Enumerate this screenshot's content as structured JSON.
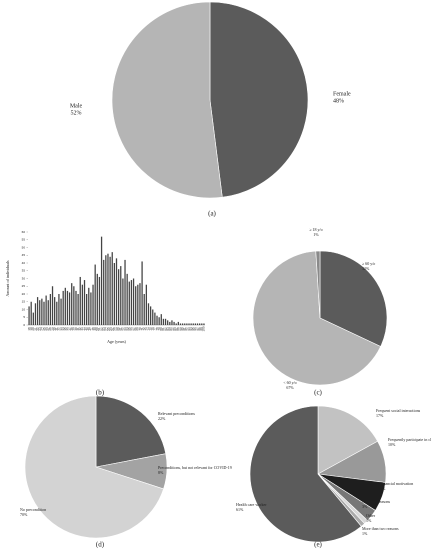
{
  "chart_data": [
    {
      "type": "pie",
      "panel": "(a)",
      "categories": [
        "Female",
        "Male"
      ],
      "values": [
        48,
        52
      ],
      "value_labels": [
        "48%",
        "52%"
      ],
      "colors": [
        "#5b5b5b",
        "#b5b5b5"
      ]
    },
    {
      "type": "bar",
      "panel": "(b)",
      "y_label": "Amount of individuals",
      "x_label": "Age (years)",
      "categories": [
        "18",
        "19",
        "20",
        "21",
        "22",
        "23",
        "24",
        "25",
        "26",
        "27",
        "28",
        "29",
        "30",
        "31",
        "32",
        "33",
        "34",
        "35",
        "36",
        "37",
        "38",
        "39",
        "40",
        "41",
        "42",
        "43",
        "44",
        "45",
        "46",
        "47",
        "48",
        "49",
        "50",
        "51",
        "52",
        "53",
        "54",
        "55",
        "56",
        "57",
        "58",
        "59",
        "60",
        "61",
        "62",
        "63",
        "64",
        "65",
        "66",
        "67",
        "68",
        "69",
        "70",
        "71",
        "72",
        "73",
        "74",
        "75",
        "76",
        "77",
        "78",
        "79",
        "80",
        "81",
        "82",
        "83",
        "84",
        "85",
        "86",
        "87",
        "88",
        "89",
        "90",
        "91",
        "92",
        "93",
        "94",
        "95",
        "96",
        "97",
        "98",
        "99",
        "100"
      ],
      "values": [
        12,
        15,
        8,
        14,
        18,
        16,
        17,
        15,
        19,
        16,
        20,
        25,
        18,
        15,
        20,
        17,
        22,
        24,
        22,
        21,
        27,
        25,
        22,
        20,
        31,
        26,
        29,
        20,
        24,
        21,
        26,
        39,
        33,
        31,
        57,
        42,
        45,
        46,
        44,
        47,
        40,
        43,
        36,
        38,
        30,
        42,
        33,
        28,
        29,
        30,
        25,
        26,
        27,
        41,
        20,
        26,
        14,
        12,
        10,
        8,
        6,
        5,
        7,
        4,
        4,
        3,
        2,
        3,
        2,
        1,
        2,
        1,
        1,
        1,
        1,
        1,
        1,
        1,
        1,
        1,
        1,
        1,
        1
      ],
      "color": "#444444",
      "ylim": [
        0,
        60
      ],
      "yticks": [
        0,
        5,
        10,
        15,
        20,
        25,
        30,
        35,
        40,
        45,
        50,
        55,
        60
      ]
    },
    {
      "type": "pie",
      "panel": "(c)",
      "categories": [
        "≥ 60 y/o",
        "< 60 y/o",
        "≥ 18 y/o"
      ],
      "values": [
        32,
        67,
        1
      ],
      "value_labels": [
        "32%",
        "67%",
        "1%"
      ],
      "colors": [
        "#5b5b5b",
        "#b5b5b5",
        "#8a8a8a"
      ]
    },
    {
      "type": "pie",
      "panel": "(d)",
      "categories": [
        "Relevant preconditions",
        "Preconditions, but not relevant for COVID-19",
        "No precondition"
      ],
      "values": [
        22,
        8,
        70
      ],
      "value_labels": [
        "22%",
        "8%",
        "70%"
      ],
      "colors": [
        "#5b5b5b",
        "#a3a3a3",
        "#d3d3d3"
      ]
    },
    {
      "type": "pie",
      "panel": "(e)",
      "categories": [
        "Frequent social interactions",
        "Frequently participate in clinical trials",
        "Financial motivation",
        "Altruistic reasons",
        "Other",
        "More than two reasons",
        "Health care worker"
      ],
      "values": [
        17,
        10,
        7,
        3,
        1,
        1,
        61
      ],
      "value_labels": [
        "17%",
        "10%",
        "7%",
        "3%",
        "1%",
        "1%",
        "61%"
      ],
      "colors": [
        "#c2c2c2",
        "#999999",
        "#1e1e1e",
        "#777777",
        "#d8d8d8",
        "#aaaaaa",
        "#5b5b5b"
      ]
    }
  ]
}
